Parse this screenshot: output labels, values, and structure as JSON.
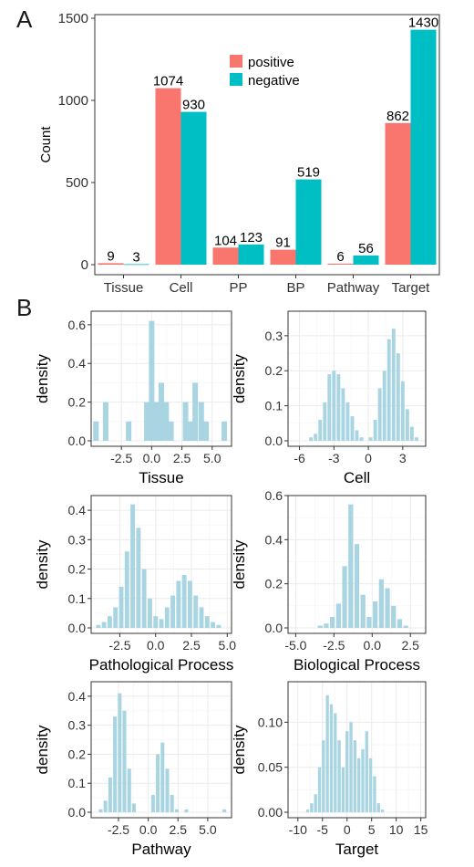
{
  "panel_labels": {
    "a": "A",
    "b": "B"
  },
  "colors": {
    "positive": "#F8766D",
    "negative": "#00BFC4",
    "histogram": "#A9D5E2",
    "grid": "#EBEBEB",
    "frame": "#333333"
  },
  "chart_data": [
    {
      "type": "bar",
      "panel": "A",
      "categories": [
        "Tissue",
        "Cell",
        "PP",
        "BP",
        "Pathway",
        "Target"
      ],
      "series": [
        {
          "name": "positive",
          "color": "#F8766D",
          "values": [
            9,
            1074,
            104,
            91,
            6,
            862
          ]
        },
        {
          "name": "negative",
          "color": "#00BFC4",
          "values": [
            3,
            930,
            123,
            519,
            56,
            1430
          ]
        }
      ],
      "ylabel": "Count",
      "xlabel": "",
      "ylim": [
        0,
        1500
      ],
      "yticks": [
        0,
        500,
        1000,
        1500
      ],
      "grid": false,
      "legend": "top-center",
      "data_labels": true
    },
    {
      "type": "bar",
      "panel": "B1",
      "subtype": "histogram",
      "xlabel": "Tissue",
      "ylabel": "density",
      "xlim": [
        -5.0,
        6.6
      ],
      "ylim": [
        0,
        0.67
      ],
      "xticks": [
        -2.5,
        0.0,
        2.5,
        5.0
      ],
      "xtick_labels": [
        "-2.5",
        "0.0",
        "2.5",
        "5.0"
      ],
      "yticks": [
        0,
        0.2,
        0.4,
        0.6
      ],
      "ytick_labels": [
        "0.0",
        "0.2",
        "0.4",
        "0.6"
      ],
      "x": [
        -4.6,
        -3.8,
        -1.9,
        -0.4,
        0.0,
        0.4,
        0.8,
        1.2,
        1.6,
        2.8,
        3.2,
        3.6,
        4.1,
        4.5,
        6.0
      ],
      "values": [
        0.1,
        0.2,
        0.1,
        0.2,
        0.62,
        0.2,
        0.3,
        0.2,
        0.1,
        0.2,
        0.1,
        0.3,
        0.2,
        0.1,
        0.1
      ]
    },
    {
      "type": "bar",
      "panel": "B2",
      "subtype": "histogram",
      "xlabel": "Cell",
      "ylabel": "density",
      "xlim": [
        -7.0,
        5.0
      ],
      "ylim": [
        0,
        0.37
      ],
      "xticks": [
        -6,
        -3,
        0,
        3
      ],
      "xtick_labels": [
        "-6",
        "-3",
        "0",
        "3"
      ],
      "yticks": [
        0,
        0.1,
        0.2,
        0.3
      ],
      "ytick_labels": [
        "0.0",
        "0.1",
        "0.2",
        "0.3"
      ],
      "x": [
        -5.0,
        -4.6,
        -4.2,
        -3.8,
        -3.4,
        -3.0,
        -2.6,
        -2.2,
        -1.8,
        -1.4,
        -1.0,
        -0.6,
        0.2,
        0.6,
        1.0,
        1.4,
        1.8,
        2.2,
        2.6,
        3.0,
        3.4,
        3.8,
        4.2
      ],
      "values": [
        0.01,
        0.02,
        0.06,
        0.11,
        0.19,
        0.2,
        0.19,
        0.15,
        0.11,
        0.07,
        0.03,
        0.01,
        0.01,
        0.06,
        0.15,
        0.2,
        0.29,
        0.32,
        0.25,
        0.17,
        0.09,
        0.04,
        0.01
      ]
    },
    {
      "type": "bar",
      "panel": "B3",
      "subtype": "histogram",
      "xlabel": "Pathological Process",
      "ylabel": "density",
      "xlim": [
        -4.5,
        5.3
      ],
      "ylim": [
        0,
        0.45
      ],
      "xticks": [
        -2.5,
        0.0,
        2.5,
        5.0
      ],
      "xtick_labels": [
        "-2.5",
        "0.0",
        "2.5",
        "5.0"
      ],
      "yticks": [
        0,
        0.1,
        0.2,
        0.3,
        0.4
      ],
      "ytick_labels": [
        "0.0",
        "0.1",
        "0.2",
        "0.3",
        "0.4"
      ],
      "x": [
        -4.0,
        -3.6,
        -3.2,
        -2.8,
        -2.4,
        -2.0,
        -1.6,
        -1.2,
        -0.8,
        -0.4,
        0.0,
        0.4,
        0.8,
        1.2,
        1.6,
        2.0,
        2.4,
        2.8,
        3.2,
        3.6,
        4.0,
        4.4
      ],
      "values": [
        0.01,
        0.02,
        0.04,
        0.07,
        0.14,
        0.26,
        0.42,
        0.34,
        0.2,
        0.1,
        0.04,
        0.03,
        0.07,
        0.11,
        0.16,
        0.18,
        0.16,
        0.11,
        0.07,
        0.04,
        0.02,
        0.01
      ]
    },
    {
      "type": "bar",
      "panel": "B4",
      "subtype": "histogram",
      "xlabel": "Biological Process",
      "ylabel": "density",
      "xlim": [
        -5.5,
        3.5
      ],
      "ylim": [
        0,
        0.6
      ],
      "xticks": [
        -5.0,
        -2.5,
        0.0,
        2.5
      ],
      "xtick_labels": [
        "-5.0",
        "-2.5",
        "0.0",
        "2.5"
      ],
      "yticks": [
        0,
        0.2,
        0.4,
        0.6
      ],
      "ytick_labels": [
        "0.0",
        "0.2",
        "0.4",
        "0.6"
      ],
      "x": [
        -3.4,
        -3.0,
        -2.6,
        -2.2,
        -1.8,
        -1.4,
        -1.0,
        -0.6,
        -0.2,
        0.2,
        0.6,
        1.0,
        1.4,
        1.8,
        2.2
      ],
      "values": [
        0.01,
        0.02,
        0.05,
        0.11,
        0.28,
        0.56,
        0.38,
        0.15,
        0.05,
        0.12,
        0.22,
        0.18,
        0.1,
        0.04,
        0.01
      ]
    },
    {
      "type": "bar",
      "panel": "B5",
      "subtype": "histogram",
      "xlabel": "Pathway",
      "ylabel": "density",
      "xlim": [
        -4.8,
        7.0
      ],
      "ylim": [
        0,
        0.45
      ],
      "xticks": [
        -2.5,
        0.0,
        2.5,
        5.0
      ],
      "xtick_labels": [
        "-2.5",
        "0.0",
        "2.5",
        "5.0"
      ],
      "yticks": [
        0,
        0.1,
        0.2,
        0.3,
        0.4
      ],
      "ytick_labels": [
        "0.0",
        "0.1",
        "0.2",
        "0.3",
        "0.4"
      ],
      "x": [
        -4.0,
        -3.6,
        -3.2,
        -2.8,
        -2.4,
        -2.0,
        -1.6,
        -1.2,
        0.4,
        0.8,
        1.2,
        1.6,
        2.0,
        2.4,
        3.2,
        6.4
      ],
      "values": [
        0.01,
        0.04,
        0.12,
        0.33,
        0.41,
        0.35,
        0.15,
        0.03,
        0.06,
        0.2,
        0.24,
        0.15,
        0.06,
        0.01,
        0.01,
        0.01
      ]
    },
    {
      "type": "bar",
      "panel": "B6",
      "subtype": "histogram",
      "xlabel": "Target",
      "ylabel": "density",
      "xlim": [
        -12.0,
        16.0
      ],
      "ylim": [
        0,
        0.145
      ],
      "xticks": [
        -10,
        -5,
        0,
        5,
        10,
        15
      ],
      "xtick_labels": [
        "-10",
        "-5",
        "0",
        "5",
        "10",
        "15"
      ],
      "yticks": [
        0,
        0.05,
        0.1
      ],
      "ytick_labels": [
        "0.00",
        "0.05",
        "0.10"
      ],
      "x": [
        -8.0,
        -7.2,
        -6.4,
        -5.6,
        -4.8,
        -4.0,
        -3.2,
        -2.4,
        -1.6,
        -0.8,
        0.0,
        0.8,
        1.6,
        2.4,
        3.2,
        4.0,
        4.8,
        5.6,
        6.4,
        7.2
      ],
      "values": [
        0.003,
        0.01,
        0.02,
        0.05,
        0.08,
        0.13,
        0.12,
        0.11,
        0.08,
        0.05,
        0.09,
        0.1,
        0.08,
        0.06,
        0.07,
        0.09,
        0.06,
        0.04,
        0.01,
        0.003
      ]
    }
  ]
}
